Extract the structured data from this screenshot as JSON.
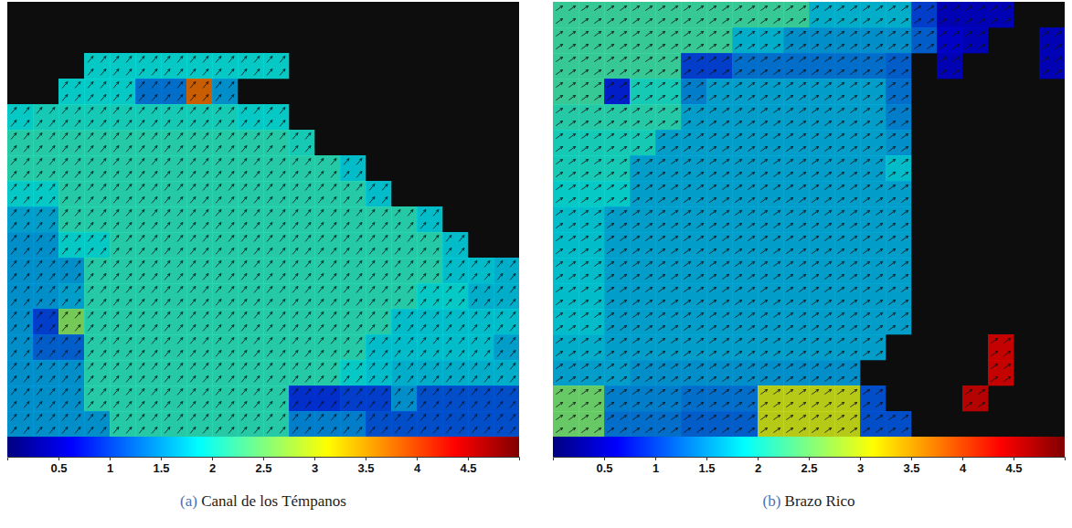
{
  "chart_data": [
    {
      "type": "heatmap",
      "title": "(a) Canal de los Témpanos",
      "flow_direction": 50,
      "colorbar": {
        "range": [
          0,
          5
        ],
        "ticks": [
          0.5,
          1,
          1.5,
          2,
          2.5,
          3,
          3.5,
          4,
          4.5
        ]
      },
      "cells": [
        [
          null,
          null,
          null,
          null,
          null,
          null,
          null,
          null,
          null,
          null,
          null,
          null,
          null,
          null,
          null,
          null,
          null,
          null,
          null,
          null
        ],
        [
          null,
          null,
          null,
          null,
          null,
          null,
          null,
          null,
          null,
          null,
          null,
          null,
          null,
          null,
          null,
          null,
          null,
          null,
          null,
          null
        ],
        [
          null,
          null,
          null,
          1.9,
          1.9,
          1.9,
          1.9,
          1.9,
          1.9,
          1.9,
          1.9,
          null,
          null,
          null,
          null,
          null,
          null,
          null,
          null,
          null
        ],
        [
          null,
          null,
          1.9,
          1.9,
          1.9,
          1.3,
          1.3,
          3.8,
          1.5,
          null,
          null,
          null,
          null,
          null,
          null,
          null,
          null,
          null,
          null,
          null
        ],
        [
          1.9,
          2.0,
          2.0,
          2.0,
          2.0,
          2.0,
          2.0,
          2.0,
          2.0,
          1.9,
          1.9,
          null,
          null,
          null,
          null,
          null,
          null,
          null,
          null,
          null
        ],
        [
          2.1,
          2.1,
          2.1,
          2.1,
          2.1,
          2.1,
          2.1,
          2.1,
          2.1,
          2.1,
          2.1,
          2.0,
          null,
          null,
          null,
          null,
          null,
          null,
          null,
          null
        ],
        [
          2.1,
          2.1,
          2.1,
          2.1,
          2.1,
          2.1,
          2.1,
          2.1,
          2.1,
          2.1,
          2.1,
          2.1,
          2.1,
          1.8,
          null,
          null,
          null,
          null,
          null,
          null
        ],
        [
          1.9,
          1.9,
          2.1,
          2.1,
          2.1,
          2.1,
          2.1,
          2.1,
          2.1,
          2.1,
          2.1,
          2.1,
          2.1,
          2.1,
          1.8,
          null,
          null,
          null,
          null,
          null
        ],
        [
          1.6,
          1.6,
          2.1,
          2.1,
          2.1,
          2.1,
          2.1,
          2.1,
          2.1,
          2.1,
          2.1,
          2.1,
          2.1,
          2.1,
          2.1,
          2.1,
          1.8,
          null,
          null,
          null
        ],
        [
          1.5,
          1.5,
          1.9,
          1.9,
          2.1,
          2.1,
          2.1,
          2.1,
          2.1,
          2.1,
          2.1,
          2.1,
          2.1,
          2.1,
          2.1,
          2.1,
          2.1,
          1.8,
          null,
          null
        ],
        [
          1.5,
          1.5,
          1.5,
          2.1,
          2.1,
          2.1,
          2.1,
          2.1,
          2.1,
          2.1,
          2.1,
          2.1,
          2.1,
          2.1,
          2.1,
          2.1,
          2.1,
          1.8,
          1.8,
          1.7
        ],
        [
          1.5,
          1.5,
          1.6,
          2.1,
          2.1,
          2.1,
          2.1,
          2.1,
          2.1,
          2.1,
          2.1,
          2.1,
          2.1,
          2.1,
          2.1,
          2.1,
          1.9,
          1.9,
          1.7,
          1.7
        ],
        [
          1.5,
          1.0,
          2.6,
          2.1,
          2.1,
          2.1,
          2.1,
          2.1,
          2.1,
          2.1,
          2.1,
          2.1,
          2.1,
          2.1,
          2.1,
          1.8,
          1.8,
          1.8,
          1.8,
          1.8
        ],
        [
          1.5,
          1.2,
          1.2,
          2.1,
          2.1,
          2.1,
          2.1,
          2.1,
          2.1,
          2.1,
          2.1,
          2.1,
          2.1,
          2.1,
          1.8,
          1.8,
          1.8,
          1.8,
          1.8,
          1.6
        ],
        [
          1.5,
          1.5,
          1.5,
          2.1,
          2.1,
          2.1,
          2.1,
          2.1,
          2.1,
          2.1,
          2.1,
          2.1,
          2.1,
          1.9,
          1.8,
          1.7,
          1.7,
          1.7,
          1.7,
          1.7
        ],
        [
          1.5,
          1.5,
          1.5,
          2.1,
          2.1,
          2.1,
          2.1,
          2.1,
          2.1,
          2.1,
          2.1,
          0.9,
          0.9,
          1.0,
          1.0,
          1.5,
          1.1,
          1.1,
          1.1,
          1.1
        ],
        [
          1.5,
          1.5,
          1.5,
          1.5,
          2.1,
          2.1,
          2.1,
          2.1,
          2.1,
          2.1,
          2.1,
          1.4,
          1.4,
          1.4,
          1.1,
          1.1,
          1.1,
          1.1,
          1.1,
          1.1
        ]
      ]
    },
    {
      "type": "heatmap",
      "title": "(b) Brazo Rico",
      "flow_direction": 35,
      "colorbar": {
        "range": [
          0,
          5
        ],
        "ticks": [
          0.5,
          1,
          1.5,
          2,
          2.5,
          3,
          3.5,
          4,
          4.5
        ]
      },
      "cells": [
        [
          2.2,
          2.2,
          2.2,
          2.2,
          2.2,
          2.2,
          2.2,
          2.2,
          2.2,
          2.2,
          1.7,
          1.7,
          1.7,
          1.7,
          1.0,
          0.5,
          0.5,
          0.5,
          null,
          null
        ],
        [
          2.2,
          2.2,
          2.2,
          2.2,
          2.2,
          2.2,
          2.2,
          1.7,
          1.7,
          1.5,
          1.5,
          1.5,
          1.5,
          1.5,
          1.2,
          0.6,
          0.5,
          null,
          null,
          0.5
        ],
        [
          2.2,
          2.2,
          2.2,
          2.2,
          2.2,
          1.0,
          1.0,
          1.3,
          1.3,
          1.3,
          1.3,
          1.3,
          1.3,
          1.2,
          null,
          0.5,
          null,
          null,
          null,
          0.5
        ],
        [
          2.2,
          2.2,
          0.8,
          2.0,
          2.0,
          1.4,
          1.6,
          1.6,
          1.6,
          1.6,
          1.6,
          1.6,
          1.6,
          1.3,
          null,
          null,
          null,
          null,
          null,
          null
        ],
        [
          2.1,
          2.1,
          2.1,
          2.1,
          2.1,
          1.6,
          1.6,
          1.6,
          1.6,
          1.6,
          1.6,
          1.6,
          1.6,
          1.4,
          null,
          null,
          null,
          null,
          null,
          null
        ],
        [
          2.0,
          2.0,
          2.0,
          2.0,
          1.6,
          1.6,
          1.6,
          1.6,
          1.6,
          1.6,
          1.6,
          1.6,
          1.6,
          1.5,
          null,
          null,
          null,
          null,
          null,
          null
        ],
        [
          2.0,
          2.0,
          2.0,
          1.6,
          1.6,
          1.6,
          1.6,
          1.6,
          1.6,
          1.6,
          1.6,
          1.6,
          1.6,
          1.8,
          null,
          null,
          null,
          null,
          null,
          null
        ],
        [
          1.9,
          1.9,
          1.9,
          1.6,
          1.6,
          1.6,
          1.6,
          1.6,
          1.6,
          1.6,
          1.6,
          1.6,
          1.6,
          1.6,
          null,
          null,
          null,
          null,
          null,
          null
        ],
        [
          1.8,
          1.8,
          1.6,
          1.6,
          1.6,
          1.6,
          1.6,
          1.6,
          1.6,
          1.6,
          1.6,
          1.6,
          1.6,
          1.6,
          null,
          null,
          null,
          null,
          null,
          null
        ],
        [
          1.8,
          1.8,
          1.6,
          1.6,
          1.6,
          1.6,
          1.6,
          1.6,
          1.6,
          1.6,
          1.6,
          1.6,
          1.6,
          1.6,
          null,
          null,
          null,
          null,
          null,
          null
        ],
        [
          1.8,
          1.8,
          1.6,
          1.6,
          1.6,
          1.6,
          1.6,
          1.6,
          1.6,
          1.6,
          1.6,
          1.6,
          1.6,
          1.6,
          null,
          null,
          null,
          null,
          null,
          null
        ],
        [
          1.8,
          1.8,
          1.6,
          1.6,
          1.6,
          1.6,
          1.6,
          1.6,
          1.6,
          1.6,
          1.6,
          1.6,
          1.6,
          1.6,
          null,
          null,
          null,
          null,
          null,
          null
        ],
        [
          1.8,
          1.8,
          1.6,
          1.6,
          1.6,
          1.6,
          1.6,
          1.6,
          1.6,
          1.6,
          1.6,
          1.6,
          1.6,
          1.6,
          null,
          null,
          null,
          null,
          null,
          null
        ],
        [
          1.7,
          1.7,
          1.6,
          1.6,
          1.6,
          1.6,
          1.6,
          1.6,
          1.6,
          1.6,
          1.6,
          1.6,
          1.6,
          null,
          null,
          null,
          null,
          4.4,
          null,
          null
        ],
        [
          1.6,
          1.6,
          1.6,
          1.5,
          1.5,
          1.5,
          1.5,
          1.5,
          1.5,
          1.5,
          1.5,
          1.5,
          null,
          null,
          null,
          null,
          null,
          4.4,
          null,
          null
        ],
        [
          2.5,
          2.5,
          1.4,
          1.4,
          1.4,
          1.3,
          1.3,
          1.3,
          3.0,
          3.0,
          3.0,
          3.0,
          1.1,
          null,
          null,
          null,
          4.5,
          null,
          null,
          null
        ],
        [
          2.5,
          2.5,
          1.3,
          1.3,
          1.3,
          1.2,
          1.2,
          1.2,
          3.0,
          3.0,
          3.0,
          3.0,
          1.1,
          1.1,
          null,
          null,
          null,
          null,
          null,
          null
        ]
      ]
    }
  ]
}
